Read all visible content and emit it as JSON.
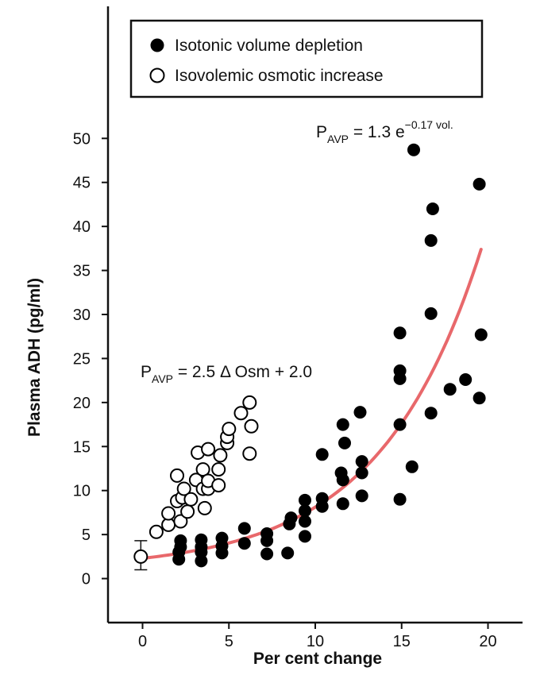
{
  "chart_data": {
    "type": "scatter",
    "xlabel": "Per cent change",
    "ylabel": "Plasma ADH (pg/ml)",
    "xlim": [
      -2,
      22
    ],
    "ylim": [
      -5,
      65
    ],
    "x_ticks": [
      0,
      5,
      10,
      15,
      20
    ],
    "y_ticks": [
      0,
      5,
      10,
      15,
      20,
      25,
      30,
      35,
      40,
      45,
      50
    ],
    "grid": false,
    "legend_position": "top-left",
    "series": [
      {
        "name": "Isotonic volume depletion",
        "marker": "filled-circle",
        "color": "#000000",
        "points": [
          [
            2.1,
            2.2
          ],
          [
            2.1,
            3.0
          ],
          [
            2.2,
            3.6
          ],
          [
            2.2,
            4.3
          ],
          [
            3.4,
            2.0
          ],
          [
            3.4,
            3.0
          ],
          [
            3.4,
            3.6
          ],
          [
            3.4,
            4.4
          ],
          [
            4.6,
            2.9
          ],
          [
            4.6,
            3.7
          ],
          [
            4.6,
            4.6
          ],
          [
            5.9,
            4.0
          ],
          [
            5.9,
            5.7
          ],
          [
            7.2,
            2.8
          ],
          [
            7.2,
            4.3
          ],
          [
            7.2,
            5.1
          ],
          [
            8.4,
            2.9
          ],
          [
            8.5,
            6.2
          ],
          [
            8.6,
            6.9
          ],
          [
            9.4,
            4.8
          ],
          [
            9.4,
            6.5
          ],
          [
            9.4,
            7.7
          ],
          [
            9.4,
            8.9
          ],
          [
            10.4,
            8.2
          ],
          [
            10.4,
            9.1
          ],
          [
            10.4,
            14.1
          ],
          [
            11.6,
            8.5
          ],
          [
            11.6,
            11.2
          ],
          [
            11.5,
            12.0
          ],
          [
            11.7,
            15.4
          ],
          [
            11.6,
            17.5
          ],
          [
            12.7,
            9.4
          ],
          [
            12.7,
            12.0
          ],
          [
            12.7,
            13.3
          ],
          [
            12.6,
            18.9
          ],
          [
            14.9,
            9.0
          ],
          [
            14.9,
            17.5
          ],
          [
            14.9,
            22.7
          ],
          [
            14.9,
            23.6
          ],
          [
            14.9,
            27.9
          ],
          [
            15.6,
            12.7
          ],
          [
            15.7,
            48.7
          ],
          [
            16.7,
            18.8
          ],
          [
            16.7,
            30.1
          ],
          [
            16.7,
            38.4
          ],
          [
            16.8,
            42.0
          ],
          [
            17.8,
            21.5
          ],
          [
            18.7,
            22.6
          ],
          [
            19.5,
            20.5
          ],
          [
            19.6,
            27.7
          ],
          [
            19.5,
            44.8
          ]
        ]
      },
      {
        "name": "Isovolemic osmotic increase",
        "marker": "open-circle",
        "color": "#000000",
        "points": [
          [
            -0.1,
            2.5
          ],
          [
            0.8,
            5.3
          ],
          [
            1.5,
            6.1
          ],
          [
            1.5,
            7.4
          ],
          [
            2.0,
            8.8
          ],
          [
            2.0,
            11.7
          ],
          [
            2.2,
            6.5
          ],
          [
            2.3,
            9.2
          ],
          [
            2.4,
            10.2
          ],
          [
            2.6,
            7.6
          ],
          [
            2.8,
            9.0
          ],
          [
            3.1,
            11.2
          ],
          [
            3.2,
            14.3
          ],
          [
            3.5,
            10.2
          ],
          [
            3.5,
            12.4
          ],
          [
            3.6,
            8.0
          ],
          [
            3.8,
            10.2
          ],
          [
            3.8,
            11.1
          ],
          [
            3.8,
            14.7
          ],
          [
            4.4,
            10.6
          ],
          [
            4.4,
            12.4
          ],
          [
            4.5,
            14.0
          ],
          [
            4.9,
            15.4
          ],
          [
            4.9,
            16.1
          ],
          [
            5.0,
            17.0
          ],
          [
            5.7,
            18.8
          ],
          [
            6.2,
            14.2
          ],
          [
            6.3,
            17.3
          ],
          [
            6.2,
            20.0
          ]
        ]
      }
    ],
    "fit_lines": [
      {
        "series": "Isotonic volume depletion",
        "model": "exponential",
        "x_range": [
          0,
          19.6
        ],
        "color": "#e8686b",
        "equation": {
          "base": "P",
          "sub": "AVP",
          "rhs": " = 1.3 e",
          "sup": "−0.17 vol."
        }
      },
      {
        "series": "Isovolemic osmotic increase",
        "model": "linear",
        "slope": 2.5,
        "intercept": 2.0,
        "equation": {
          "base": "P",
          "sub": "AVP",
          "rhs": " = 2.5 Δ Osm + 2.0"
        }
      }
    ],
    "error_bar": {
      "x": -0.1,
      "y": 2.5,
      "low": 1.0,
      "high": 4.3
    }
  }
}
